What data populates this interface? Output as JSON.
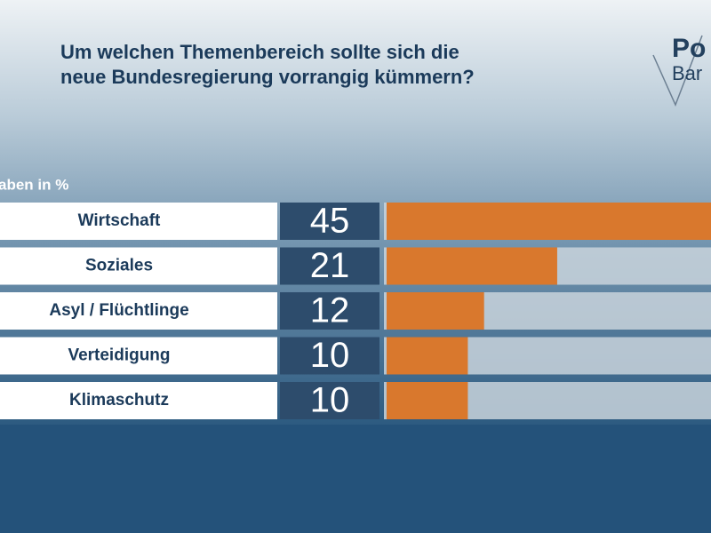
{
  "chart_data": {
    "type": "hbar",
    "title_lines": [
      "Um welchen Themenbereich sollte sich die",
      "neue Bundesregierung vorrangig kümmern?"
    ],
    "subtitle": "aben in %",
    "logo": [
      "Po",
      "Bar"
    ],
    "categories": [
      "Wirtschaft",
      "Soziales",
      "Asyl / Flüchtlinge",
      "Verteidigung",
      "Klimaschutz"
    ],
    "values": [
      45,
      21,
      12,
      10,
      10
    ],
    "color": "#d9782d"
  }
}
